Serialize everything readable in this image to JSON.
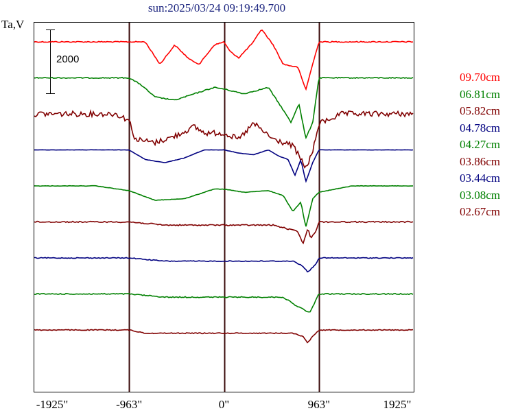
{
  "title": "sun:2025/03/24 09:19:49.700",
  "ylabel": "Ta,V",
  "scale_bar_label": "2000",
  "chart_data": {
    "type": "line",
    "title": "sun:2025/03/24 09:19:49.700",
    "ylabel": "Ta,V",
    "xlim": [
      -1925,
      1925
    ],
    "x_ticks": [
      "-1925\"",
      "-963\"",
      "0\"",
      "963\"",
      "1925\""
    ],
    "x_tick_values": [
      -1925,
      -963,
      0,
      963,
      1925
    ],
    "vertical_lines": [
      -963,
      0,
      963
    ],
    "scale_bar": 2000,
    "grid": false,
    "legend": "right",
    "series": [
      {
        "name": "09.70cm",
        "color": "#ff0000",
        "noise": 1.5,
        "points": [
          [
            -1925,
            0
          ],
          [
            -963,
            0
          ],
          [
            -800,
            0
          ],
          [
            -650,
            -700
          ],
          [
            -500,
            -100
          ],
          [
            -350,
            -550
          ],
          [
            -250,
            -700
          ],
          [
            -100,
            -100
          ],
          [
            0,
            0
          ],
          [
            60,
            -300
          ],
          [
            150,
            -500
          ],
          [
            300,
            0
          ],
          [
            380,
            400
          ],
          [
            500,
            -100
          ],
          [
            600,
            -700
          ],
          [
            750,
            -800
          ],
          [
            830,
            -1500
          ],
          [
            900,
            -700
          ],
          [
            963,
            0
          ],
          [
            1925,
            0
          ]
        ]
      },
      {
        "name": "06.81cm",
        "color": "#008000",
        "noise": 1.5,
        "points": [
          [
            -1925,
            0
          ],
          [
            -963,
            0
          ],
          [
            -850,
            -200
          ],
          [
            -700,
            -600
          ],
          [
            -500,
            -700
          ],
          [
            -300,
            -500
          ],
          [
            -100,
            -300
          ],
          [
            0,
            -350
          ],
          [
            200,
            -500
          ],
          [
            450,
            -300
          ],
          [
            600,
            -1000
          ],
          [
            680,
            -1400
          ],
          [
            760,
            -800
          ],
          [
            830,
            -1900
          ],
          [
            900,
            -1400
          ],
          [
            963,
            0
          ],
          [
            1925,
            0
          ]
        ]
      },
      {
        "name": "05.82cm",
        "color": "#800000",
        "noise": 8,
        "points": [
          [
            -1925,
            0
          ],
          [
            -1100,
            0
          ],
          [
            -963,
            -200
          ],
          [
            -900,
            -800
          ],
          [
            -700,
            -900
          ],
          [
            -500,
            -700
          ],
          [
            -300,
            -400
          ],
          [
            -200,
            -600
          ],
          [
            0,
            -600
          ],
          [
            150,
            -800
          ],
          [
            300,
            -300
          ],
          [
            500,
            -800
          ],
          [
            700,
            -1000
          ],
          [
            830,
            -1700
          ],
          [
            900,
            -1200
          ],
          [
            963,
            -300
          ],
          [
            1200,
            0
          ],
          [
            1925,
            0
          ]
        ]
      },
      {
        "name": "04.78cm",
        "color": "#000080",
        "noise": 0.4,
        "points": [
          [
            -1925,
            0
          ],
          [
            -963,
            0
          ],
          [
            -800,
            -300
          ],
          [
            -600,
            -400
          ],
          [
            -400,
            -250
          ],
          [
            -200,
            0
          ],
          [
            0,
            0
          ],
          [
            150,
            -100
          ],
          [
            300,
            -150
          ],
          [
            450,
            0
          ],
          [
            560,
            -200
          ],
          [
            650,
            -300
          ],
          [
            720,
            -800
          ],
          [
            780,
            -300
          ],
          [
            830,
            -1000
          ],
          [
            900,
            -400
          ],
          [
            963,
            0
          ],
          [
            1925,
            0
          ]
        ]
      },
      {
        "name": "04.27cm",
        "color": "#008000",
        "noise": 0.6,
        "points": [
          [
            -1925,
            0
          ],
          [
            -1300,
            0
          ],
          [
            -963,
            -150
          ],
          [
            -700,
            -450
          ],
          [
            -400,
            -400
          ],
          [
            -100,
            -100
          ],
          [
            0,
            -100
          ],
          [
            200,
            -200
          ],
          [
            450,
            -150
          ],
          [
            600,
            -300
          ],
          [
            700,
            -800
          ],
          [
            780,
            -500
          ],
          [
            830,
            -1300
          ],
          [
            900,
            -400
          ],
          [
            963,
            -200
          ],
          [
            1300,
            0
          ],
          [
            1925,
            0
          ]
        ]
      },
      {
        "name": "03.86cm",
        "color": "#800000",
        "noise": 1.8,
        "points": [
          [
            -1925,
            0
          ],
          [
            -963,
            0
          ],
          [
            -600,
            -100
          ],
          [
            0,
            -100
          ],
          [
            500,
            -100
          ],
          [
            750,
            -300
          ],
          [
            800,
            -700
          ],
          [
            850,
            -200
          ],
          [
            880,
            -500
          ],
          [
            930,
            -300
          ],
          [
            963,
            0
          ],
          [
            1925,
            0
          ]
        ]
      },
      {
        "name": "03.44cm",
        "color": "#000080",
        "noise": 1.2,
        "points": [
          [
            -1925,
            0
          ],
          [
            -963,
            0
          ],
          [
            -600,
            -100
          ],
          [
            0,
            -100
          ],
          [
            700,
            -100
          ],
          [
            800,
            -250
          ],
          [
            850,
            -450
          ],
          [
            930,
            -200
          ],
          [
            963,
            0
          ],
          [
            1925,
            0
          ]
        ]
      },
      {
        "name": "03.08cm",
        "color": "#008000",
        "noise": 1.5,
        "points": [
          [
            -1925,
            0
          ],
          [
            -963,
            0
          ],
          [
            -600,
            -100
          ],
          [
            0,
            -100
          ],
          [
            600,
            -100
          ],
          [
            750,
            -400
          ],
          [
            820,
            -500
          ],
          [
            870,
            -600
          ],
          [
            930,
            -200
          ],
          [
            963,
            0
          ],
          [
            1925,
            0
          ]
        ]
      },
      {
        "name": "02.67cm",
        "color": "#800000",
        "noise": 1.3,
        "points": [
          [
            -1925,
            0
          ],
          [
            -963,
            0
          ],
          [
            -800,
            -100
          ],
          [
            0,
            -100
          ],
          [
            700,
            -100
          ],
          [
            800,
            -200
          ],
          [
            850,
            -400
          ],
          [
            900,
            -200
          ],
          [
            963,
            0
          ],
          [
            1925,
            0
          ]
        ]
      }
    ]
  }
}
